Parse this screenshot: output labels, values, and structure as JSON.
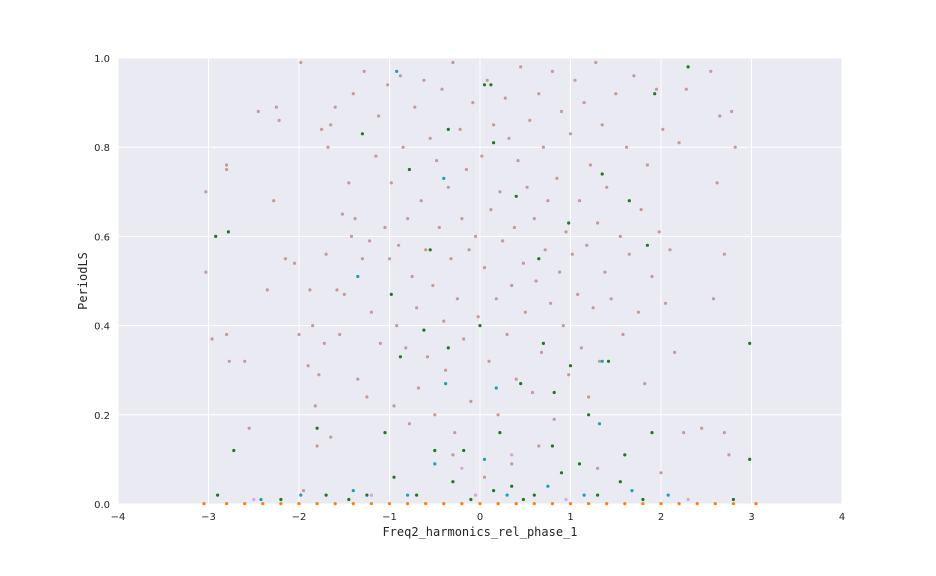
{
  "chart_data": {
    "type": "scatter",
    "title": "",
    "xlabel": "Freq2_harmonics_rel_phase_1",
    "ylabel": "PeriodLS",
    "xlim": [
      -4,
      4
    ],
    "ylim": [
      0,
      1.0
    ],
    "xticks": [
      "−4",
      "−3",
      "−2",
      "−1",
      "0",
      "1",
      "2",
      "3",
      "4"
    ],
    "yticks": [
      "0.0",
      "0.2",
      "0.4",
      "0.6",
      "0.8",
      "1.0"
    ],
    "xtick_values": [
      -4,
      -3,
      -2,
      -1,
      0,
      1,
      2,
      3,
      4
    ],
    "ytick_values": [
      0,
      0.2,
      0.4,
      0.6,
      0.8,
      1.0
    ],
    "grid": true,
    "style": {
      "background": "#eaeaf2",
      "grid": "#ffffff"
    },
    "series": [
      {
        "color": "#c49c94",
        "points": [
          [
            -3.03,
            0.7
          ],
          [
            -3.03,
            0.52
          ],
          [
            -2.96,
            0.37
          ],
          [
            -2.8,
            0.76
          ],
          [
            -2.8,
            0.75
          ],
          [
            -2.8,
            0.38
          ],
          [
            -2.77,
            0.32
          ],
          [
            -2.6,
            0.32
          ],
          [
            -2.45,
            0.88
          ],
          [
            -2.35,
            0.48
          ],
          [
            -2.28,
            0.68
          ],
          [
            -2.25,
            0.89
          ],
          [
            -2.22,
            0.86
          ],
          [
            -2.15,
            0.55
          ],
          [
            -2.05,
            0.54
          ],
          [
            -2.0,
            0.38
          ],
          [
            -1.98,
            0.99
          ],
          [
            -1.95,
            0.03
          ],
          [
            -1.9,
            0.31
          ],
          [
            -1.88,
            0.48
          ],
          [
            -1.85,
            0.4
          ],
          [
            -1.82,
            0.22
          ],
          [
            -1.8,
            0.13
          ],
          [
            -1.78,
            0.29
          ],
          [
            -1.75,
            0.84
          ],
          [
            -1.72,
            0.36
          ],
          [
            -1.7,
            0.56
          ],
          [
            -1.68,
            0.8
          ],
          [
            -1.65,
            0.85
          ],
          [
            -1.6,
            0.89
          ],
          [
            -1.58,
            0.48
          ],
          [
            -1.55,
            0.38
          ],
          [
            -1.52,
            0.65
          ],
          [
            -1.5,
            0.47
          ],
          [
            -1.45,
            0.72
          ],
          [
            -1.42,
            0.6
          ],
          [
            -1.4,
            0.92
          ],
          [
            -1.38,
            0.64
          ],
          [
            -1.35,
            0.28
          ],
          [
            -1.3,
            0.55
          ],
          [
            -1.28,
            0.97
          ],
          [
            -1.25,
            0.24
          ],
          [
            -1.22,
            0.59
          ],
          [
            -1.2,
            0.43
          ],
          [
            -1.15,
            0.78
          ],
          [
            -1.12,
            0.87
          ],
          [
            -1.1,
            0.36
          ],
          [
            -1.05,
            0.62
          ],
          [
            -1.02,
            0.94
          ],
          [
            -1.0,
            0.55
          ],
          [
            -0.98,
            0.72
          ],
          [
            -0.95,
            0.22
          ],
          [
            -0.92,
            0.4
          ],
          [
            -0.9,
            0.58
          ],
          [
            -0.88,
            0.96
          ],
          [
            -0.85,
            0.8
          ],
          [
            -0.82,
            0.35
          ],
          [
            -0.8,
            0.64
          ],
          [
            -0.78,
            0.18
          ],
          [
            -0.75,
            0.51
          ],
          [
            -0.72,
            0.89
          ],
          [
            -0.7,
            0.44
          ],
          [
            -0.68,
            0.26
          ],
          [
            -0.65,
            0.68
          ],
          [
            -0.62,
            0.95
          ],
          [
            -0.6,
            0.57
          ],
          [
            -0.58,
            0.33
          ],
          [
            -0.55,
            0.82
          ],
          [
            -0.52,
            0.49
          ],
          [
            -0.5,
            0.2
          ],
          [
            -0.48,
            0.77
          ],
          [
            -0.45,
            0.62
          ],
          [
            -0.42,
            0.93
          ],
          [
            -0.4,
            0.41
          ],
          [
            -0.38,
            0.3
          ],
          [
            -0.35,
            0.71
          ],
          [
            -0.32,
            0.55
          ],
          [
            -0.3,
            0.99
          ],
          [
            -0.28,
            0.16
          ],
          [
            -0.25,
            0.46
          ],
          [
            -0.22,
            0.84
          ],
          [
            -0.2,
            0.64
          ],
          [
            -0.18,
            0.37
          ],
          [
            -0.15,
            0.75
          ],
          [
            -0.12,
            0.57
          ],
          [
            -0.1,
            0.23
          ],
          [
            -0.08,
            0.9
          ],
          [
            -0.05,
            0.6
          ],
          [
            -0.02,
            0.42
          ],
          [
            0.02,
            0.78
          ],
          [
            0.05,
            0.53
          ],
          [
            0.08,
            0.95
          ],
          [
            0.1,
            0.32
          ],
          [
            0.12,
            0.66
          ],
          [
            0.15,
            0.85
          ],
          [
            0.18,
            0.46
          ],
          [
            0.2,
            0.2
          ],
          [
            0.22,
            0.7
          ],
          [
            0.25,
            0.59
          ],
          [
            0.28,
            0.91
          ],
          [
            0.3,
            0.38
          ],
          [
            0.32,
            0.82
          ],
          [
            0.35,
            0.49
          ],
          [
            0.38,
            0.62
          ],
          [
            0.4,
            0.28
          ],
          [
            0.42,
            0.77
          ],
          [
            0.45,
            0.98
          ],
          [
            0.48,
            0.54
          ],
          [
            0.5,
            0.43
          ],
          [
            0.52,
            0.71
          ],
          [
            0.55,
            0.86
          ],
          [
            0.58,
            0.25
          ],
          [
            0.6,
            0.64
          ],
          [
            0.62,
            0.5
          ],
          [
            0.65,
            0.92
          ],
          [
            0.68,
            0.34
          ],
          [
            0.7,
            0.8
          ],
          [
            0.72,
            0.57
          ],
          [
            0.75,
            0.68
          ],
          [
            0.78,
            0.45
          ],
          [
            0.8,
            0.97
          ],
          [
            0.82,
            0.19
          ],
          [
            0.85,
            0.73
          ],
          [
            0.88,
            0.52
          ],
          [
            0.9,
            0.88
          ],
          [
            0.92,
            0.4
          ],
          [
            0.95,
            0.61
          ],
          [
            0.98,
            0.29
          ],
          [
            1.0,
            0.83
          ],
          [
            1.02,
            0.56
          ],
          [
            1.05,
            0.95
          ],
          [
            1.08,
            0.47
          ],
          [
            1.1,
            0.68
          ],
          [
            1.12,
            0.35
          ],
          [
            1.15,
            0.9
          ],
          [
            1.18,
            0.58
          ],
          [
            1.2,
            0.24
          ],
          [
            1.22,
            0.76
          ],
          [
            1.25,
            0.44
          ],
          [
            1.28,
            0.99
          ],
          [
            1.3,
            0.63
          ],
          [
            1.32,
            0.32
          ],
          [
            1.35,
            0.85
          ],
          [
            1.38,
            0.52
          ],
          [
            1.4,
            0.71
          ],
          [
            1.45,
            0.46
          ],
          [
            1.5,
            0.92
          ],
          [
            1.55,
            0.6
          ],
          [
            1.58,
            0.38
          ],
          [
            1.62,
            0.8
          ],
          [
            1.65,
            0.56
          ],
          [
            1.7,
            0.96
          ],
          [
            1.75,
            0.43
          ],
          [
            1.78,
            0.66
          ],
          [
            1.82,
            0.27
          ],
          [
            1.85,
            0.76
          ],
          [
            1.9,
            0.51
          ],
          [
            1.95,
            0.93
          ],
          [
            1.98,
            0.61
          ],
          [
            2.02,
            0.84
          ],
          [
            2.05,
            0.45
          ],
          [
            2.1,
            0.57
          ],
          [
            2.15,
            0.34
          ],
          [
            2.2,
            0.81
          ],
          [
            2.25,
            0.16
          ],
          [
            2.28,
            0.93
          ],
          [
            2.55,
            0.97
          ],
          [
            2.58,
            0.46
          ],
          [
            2.62,
            0.72
          ],
          [
            2.65,
            0.87
          ],
          [
            2.7,
            0.56
          ],
          [
            2.75,
            0.11
          ],
          [
            2.78,
            0.88
          ],
          [
            2.82,
            0.8
          ],
          [
            2.45,
            0.17
          ],
          [
            -2.55,
            0.17
          ],
          [
            -1.65,
            0.15
          ],
          [
            -0.3,
            0.11
          ],
          [
            0.05,
            0.06
          ],
          [
            0.35,
            0.09
          ],
          [
            0.65,
            0.13
          ],
          [
            1.3,
            0.08
          ],
          [
            2.0,
            0.07
          ],
          [
            2.7,
            0.16
          ]
        ]
      },
      {
        "color": "#1f7a1f",
        "points": [
          [
            -2.92,
            0.6
          ],
          [
            -2.78,
            0.61
          ],
          [
            -2.72,
            0.12
          ],
          [
            -1.3,
            0.83
          ],
          [
            -0.98,
            0.47
          ],
          [
            -0.78,
            0.75
          ],
          [
            -0.55,
            0.57
          ],
          [
            -0.35,
            0.84
          ],
          [
            0.05,
            0.94
          ],
          [
            0.12,
            0.94
          ],
          [
            0.15,
            0.81
          ],
          [
            0.4,
            0.69
          ],
          [
            0.65,
            0.55
          ],
          [
            0.98,
            0.63
          ],
          [
            1.35,
            0.74
          ],
          [
            1.65,
            0.68
          ],
          [
            1.85,
            0.58
          ],
          [
            1.93,
            0.92
          ],
          [
            2.3,
            0.98
          ],
          [
            -1.8,
            0.17
          ],
          [
            -1.05,
            0.16
          ],
          [
            -0.88,
            0.33
          ],
          [
            -0.62,
            0.39
          ],
          [
            -0.35,
            0.35
          ],
          [
            -0.18,
            0.12
          ],
          [
            0.0,
            0.4
          ],
          [
            0.22,
            0.16
          ],
          [
            0.45,
            0.27
          ],
          [
            0.7,
            0.36
          ],
          [
            0.82,
            0.25
          ],
          [
            1.0,
            0.31
          ],
          [
            1.2,
            0.2
          ],
          [
            1.42,
            0.32
          ],
          [
            1.6,
            0.11
          ],
          [
            1.9,
            0.16
          ],
          [
            2.98,
            0.36
          ],
          [
            2.98,
            0.1
          ],
          [
            -1.45,
            0.01
          ],
          [
            -1.25,
            0.02
          ],
          [
            -0.95,
            0.06
          ],
          [
            -0.7,
            0.02
          ],
          [
            -0.3,
            0.05
          ],
          [
            0.35,
            0.04
          ],
          [
            0.6,
            0.02
          ],
          [
            0.9,
            0.07
          ],
          [
            1.3,
            0.02
          ],
          [
            1.55,
            0.05
          ],
          [
            -0.5,
            0.12
          ],
          [
            0.15,
            0.03
          ],
          [
            0.8,
            0.13
          ],
          [
            1.1,
            0.09
          ],
          [
            -2.9,
            0.02
          ],
          [
            2.8,
            0.01
          ],
          [
            -0.1,
            0.01
          ],
          [
            0.48,
            0.01
          ],
          [
            1.8,
            0.01
          ],
          [
            -1.7,
            0.02
          ],
          [
            -2.2,
            0.01
          ]
        ]
      },
      {
        "color": "#17a3b3",
        "points": [
          [
            -0.92,
            0.97
          ],
          [
            -1.35,
            0.51
          ],
          [
            -0.4,
            0.73
          ],
          [
            -0.38,
            0.27
          ],
          [
            0.18,
            0.26
          ],
          [
            -0.5,
            0.09
          ],
          [
            0.05,
            0.1
          ],
          [
            1.35,
            0.32
          ],
          [
            1.32,
            0.18
          ],
          [
            -1.4,
            0.03
          ],
          [
            -0.8,
            0.02
          ],
          [
            0.3,
            0.02
          ],
          [
            0.75,
            0.04
          ],
          [
            1.15,
            0.02
          ],
          [
            1.68,
            0.03
          ],
          [
            2.08,
            0.02
          ],
          [
            -1.98,
            0.02
          ],
          [
            -2.42,
            0.01
          ]
        ]
      },
      {
        "color": "#d4a6e0",
        "points": [
          [
            -2.5,
            0.01
          ],
          [
            -1.2,
            0.02
          ],
          [
            -0.05,
            0.02
          ],
          [
            0.95,
            0.01
          ],
          [
            2.3,
            0.01
          ],
          [
            -0.2,
            0.08
          ],
          [
            0.35,
            0.11
          ]
        ]
      },
      {
        "color": "#ff7f0e",
        "points": [
          [
            -3.05,
            0.001
          ],
          [
            -2.8,
            0.001
          ],
          [
            -2.6,
            0.001
          ],
          [
            -2.4,
            0.001
          ],
          [
            -2.2,
            0.001
          ],
          [
            -2.0,
            0.001
          ],
          [
            -1.8,
            0.001
          ],
          [
            -1.6,
            0.001
          ],
          [
            -1.4,
            0.001
          ],
          [
            -1.2,
            0.001
          ],
          [
            -1.0,
            0.001
          ],
          [
            -0.8,
            0.001
          ],
          [
            -0.6,
            0.001
          ],
          [
            -0.4,
            0.001
          ],
          [
            -0.2,
            0.001
          ],
          [
            0.0,
            0.001
          ],
          [
            0.2,
            0.001
          ],
          [
            0.4,
            0.001
          ],
          [
            0.6,
            0.001
          ],
          [
            0.8,
            0.001
          ],
          [
            1.0,
            0.001
          ],
          [
            1.2,
            0.001
          ],
          [
            1.4,
            0.001
          ],
          [
            1.6,
            0.001
          ],
          [
            1.8,
            0.001
          ],
          [
            2.0,
            0.001
          ],
          [
            2.2,
            0.001
          ],
          [
            2.4,
            0.001
          ],
          [
            2.6,
            0.001
          ],
          [
            2.8,
            0.001
          ],
          [
            3.05,
            0.001
          ]
        ]
      }
    ]
  }
}
